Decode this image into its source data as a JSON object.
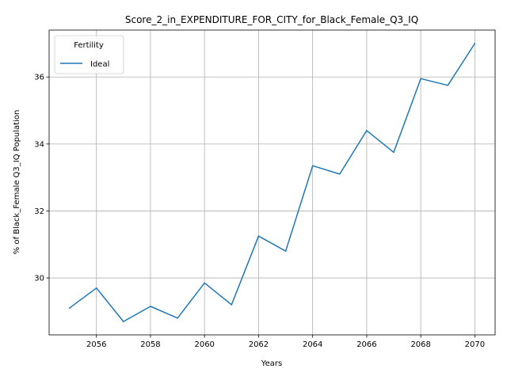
{
  "chart_data": {
    "type": "line",
    "title": "Score_2_in_EXPENDITURE_FOR_CITY_for_Black_Female_Q3_IQ",
    "xlabel": "Years",
    "ylabel": "% of Black_Female Q3_IQ Population",
    "x": [
      2055,
      2056,
      2057,
      2058,
      2059,
      2060,
      2061,
      2062,
      2063,
      2064,
      2065,
      2066,
      2067,
      2068,
      2069,
      2070
    ],
    "series": [
      {
        "name": "Ideal",
        "color": "#1f77b4",
        "values": [
          29.1,
          29.7,
          28.7,
          29.15,
          28.8,
          29.85,
          29.2,
          31.25,
          30.8,
          33.35,
          33.1,
          34.4,
          33.75,
          35.95,
          35.75,
          37.0
        ]
      }
    ],
    "xlim": [
      2054.25,
      2070.75
    ],
    "ylim": [
      28.3,
      37.4
    ],
    "xticks": [
      "2056",
      "2058",
      "2060",
      "2062",
      "2064",
      "2066",
      "2068",
      "2070"
    ],
    "yticks": [
      "30",
      "32",
      "34",
      "36"
    ],
    "grid": true,
    "legend": {
      "title": "Fertility",
      "placement": "top-left"
    }
  }
}
